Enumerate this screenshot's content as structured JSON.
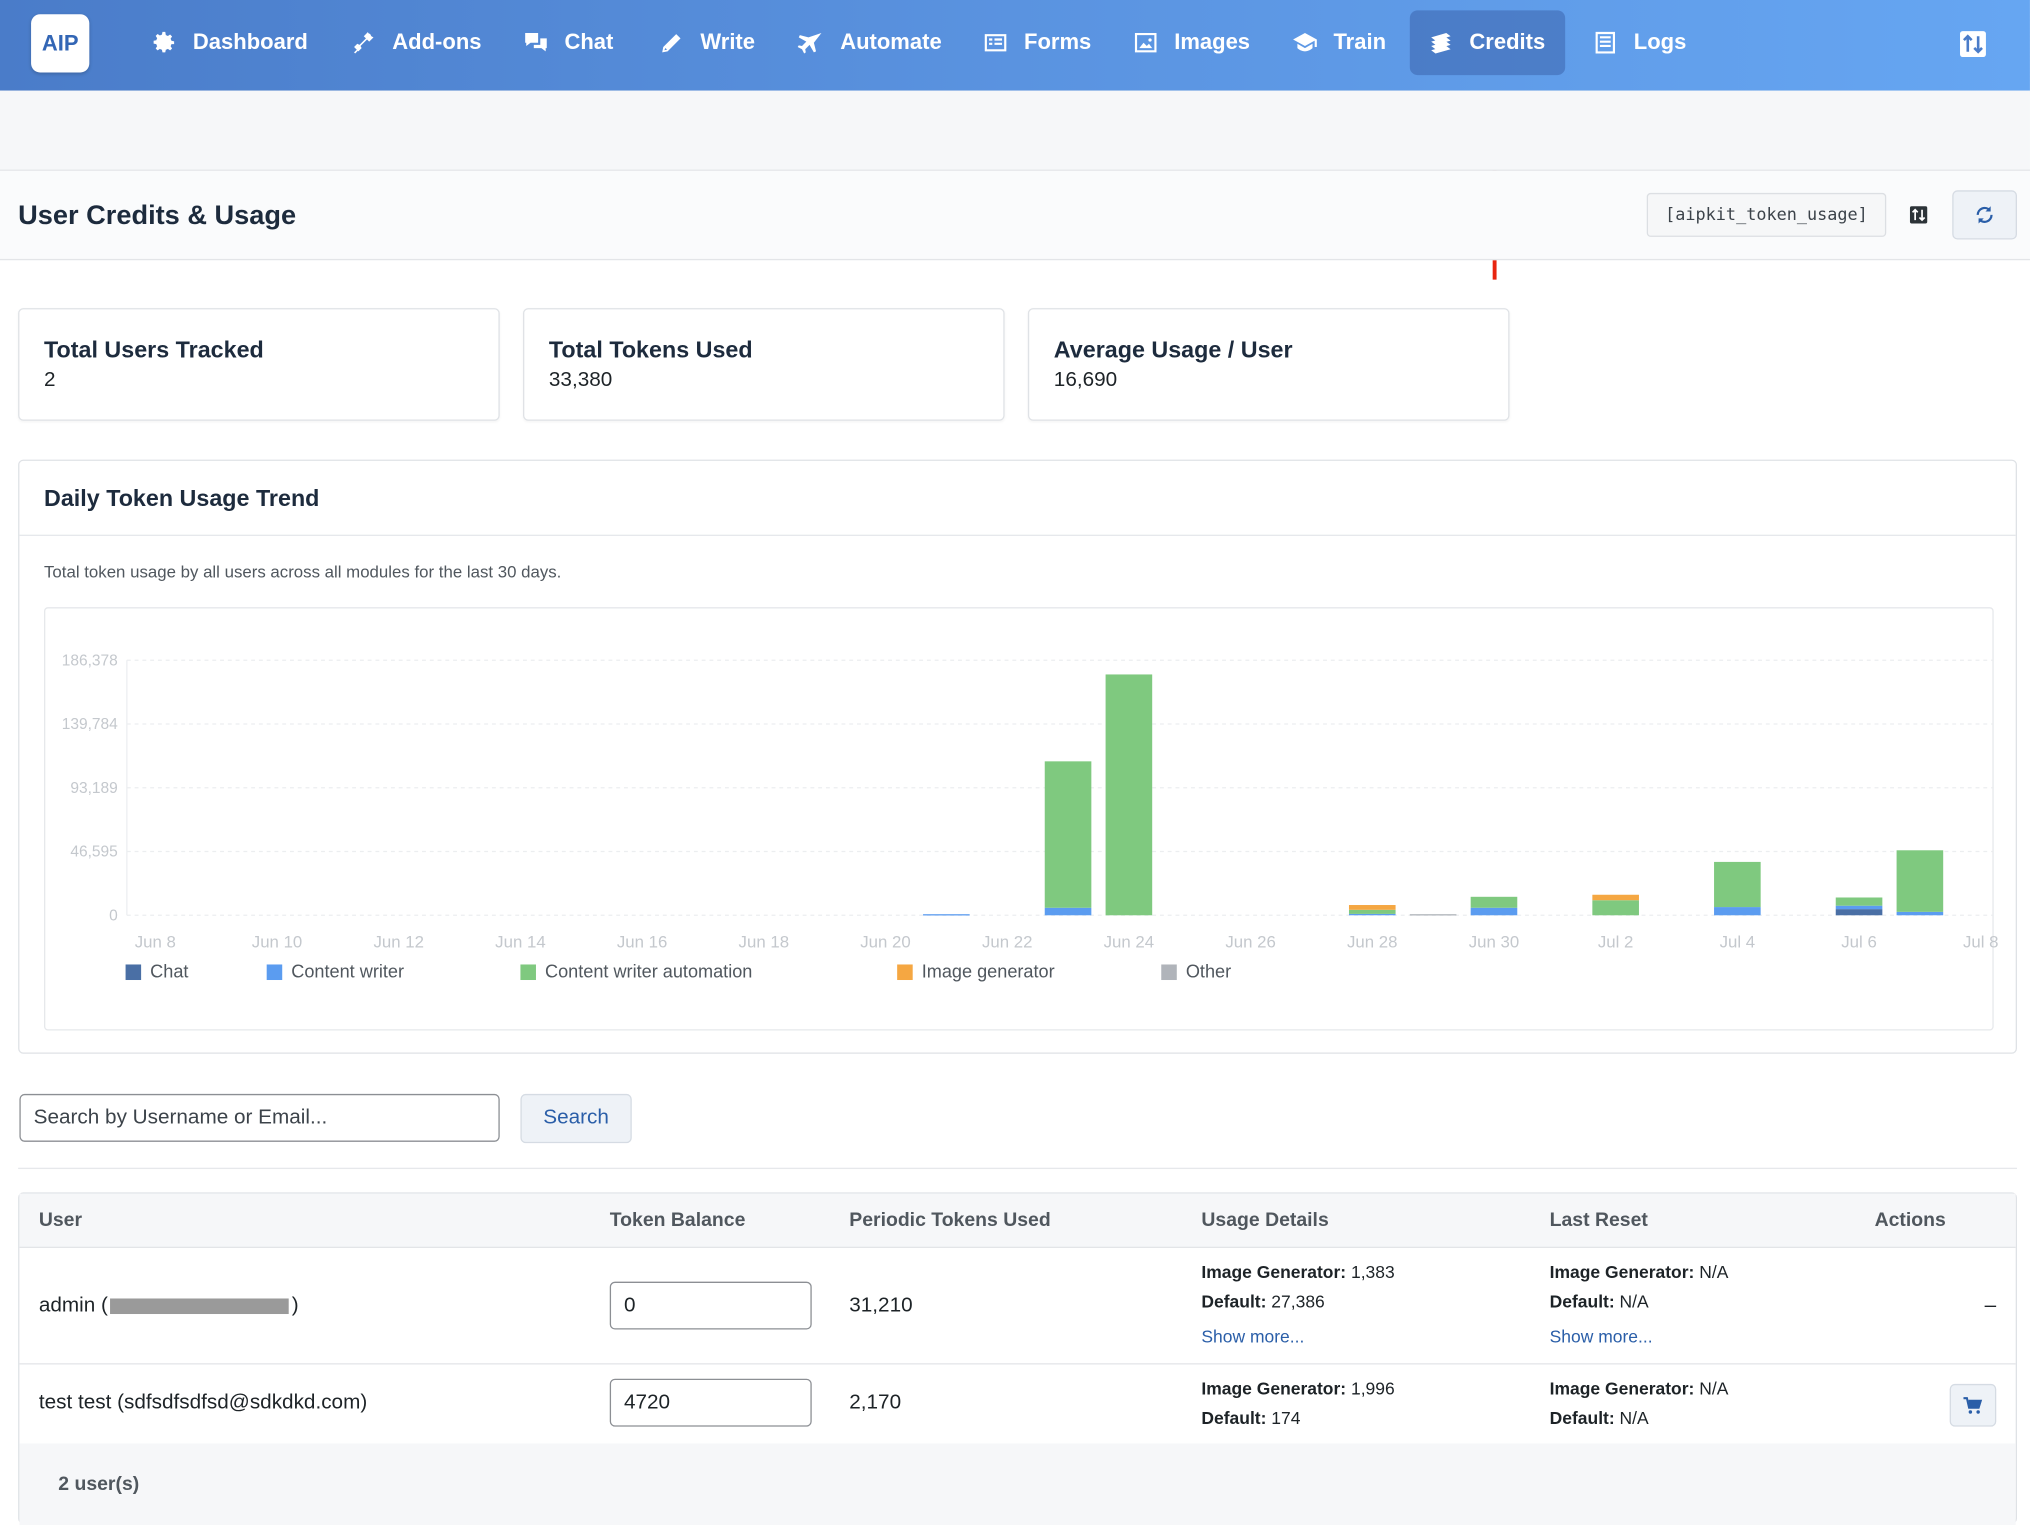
{
  "nav": {
    "logo": "AIP",
    "items": [
      {
        "label": "Dashboard",
        "icon": "gear-icon"
      },
      {
        "label": "Add-ons",
        "icon": "plug-icon"
      },
      {
        "label": "Chat",
        "icon": "chat-bubbles-icon"
      },
      {
        "label": "Write",
        "icon": "pencil-icon"
      },
      {
        "label": "Automate",
        "icon": "plane-icon"
      },
      {
        "label": "Forms",
        "icon": "form-icon"
      },
      {
        "label": "Images",
        "icon": "image-icon"
      },
      {
        "label": "Train",
        "icon": "graduation-cap-icon"
      },
      {
        "label": "Credits",
        "icon": "money-stack-icon",
        "active": true
      },
      {
        "label": "Logs",
        "icon": "list-icon"
      }
    ]
  },
  "header": {
    "title": "User Credits & Usage",
    "shortcode": "[aipkit_token_usage]"
  },
  "stats": [
    {
      "label": "Total Users Tracked",
      "value": "2"
    },
    {
      "label": "Total Tokens Used",
      "value": "33,380"
    },
    {
      "label": "Average Usage / User",
      "value": "16,690"
    }
  ],
  "trend": {
    "title": "Daily Token Usage Trend",
    "description": "Total token usage by all users across all modules for the last 30 days."
  },
  "chart_data": {
    "type": "bar",
    "stacked": true,
    "ylim": [
      0,
      186378
    ],
    "yticks": [
      "186,378",
      "139,784",
      "93,189",
      "46,595",
      "0"
    ],
    "ytick_values": [
      186378,
      139784,
      93189,
      46595,
      0
    ],
    "grid": true,
    "legend_position": "bottom-left",
    "categories": [
      "Jun 8",
      "Jun 9",
      "Jun 10",
      "Jun 11",
      "Jun 12",
      "Jun 13",
      "Jun 14",
      "Jun 15",
      "Jun 16",
      "Jun 17",
      "Jun 18",
      "Jun 19",
      "Jun 20",
      "Jun 21",
      "Jun 22",
      "Jun 23",
      "Jun 24",
      "Jun 25",
      "Jun 26",
      "Jun 27",
      "Jun 28",
      "Jun 29",
      "Jun 30",
      "Jul 1",
      "Jul 2",
      "Jul 3",
      "Jul 4",
      "Jul 5",
      "Jul 6",
      "Jul 7",
      "Jul 8"
    ],
    "xticks": [
      "Jun 8",
      "Jun 10",
      "Jun 12",
      "Jun 14",
      "Jun 16",
      "Jun 18",
      "Jun 20",
      "Jun 22",
      "Jun 24",
      "Jun 26",
      "Jun 28",
      "Jun 30",
      "Jul 2",
      "Jul 4",
      "Jul 6",
      "Jul 8"
    ],
    "series": [
      {
        "name": "Chat",
        "color": "#4a6fa5",
        "values": [
          0,
          0,
          0,
          0,
          0,
          0,
          0,
          0,
          0,
          0,
          0,
          0,
          0,
          0,
          0,
          0,
          0,
          0,
          0,
          0,
          0,
          0,
          0,
          0,
          0,
          0,
          0,
          0,
          4500,
          0,
          0
        ]
      },
      {
        "name": "Content writer",
        "color": "#5b9cf0",
        "values": [
          0,
          0,
          0,
          0,
          0,
          0,
          0,
          0,
          0,
          0,
          0,
          0,
          0,
          800,
          0,
          5500,
          0,
          0,
          0,
          0,
          1000,
          0,
          5500,
          0,
          0,
          0,
          6000,
          0,
          2500,
          2500,
          0
        ]
      },
      {
        "name": "Content writer automation",
        "color": "#7fc97f",
        "values": [
          0,
          0,
          0,
          0,
          0,
          0,
          0,
          0,
          0,
          0,
          0,
          0,
          0,
          0,
          0,
          107000,
          176000,
          0,
          0,
          0,
          3000,
          0,
          8000,
          0,
          11000,
          0,
          33000,
          0,
          6000,
          45000,
          0
        ]
      },
      {
        "name": "Image generator",
        "color": "#f5a742",
        "values": [
          0,
          0,
          0,
          0,
          0,
          0,
          0,
          0,
          0,
          0,
          0,
          0,
          0,
          0,
          0,
          0,
          0,
          0,
          0,
          0,
          3500,
          0,
          0,
          0,
          4000,
          0,
          0,
          0,
          0,
          0,
          0
        ]
      },
      {
        "name": "Other",
        "color": "#b0b4ba",
        "values": [
          0,
          0,
          0,
          0,
          0,
          0,
          0,
          0,
          0,
          0,
          0,
          0,
          0,
          0,
          0,
          0,
          0,
          0,
          0,
          0,
          0,
          800,
          0,
          0,
          0,
          0,
          0,
          0,
          0,
          0,
          0
        ]
      }
    ]
  },
  "search": {
    "placeholder": "Search by Username or Email...",
    "button": "Search"
  },
  "table": {
    "headers": [
      "User",
      "Token Balance",
      "Periodic Tokens Used",
      "Usage Details",
      "Last Reset",
      "Actions"
    ],
    "rows": [
      {
        "user_prefix": "admin (",
        "user_suffix": ")",
        "balance": "0",
        "periodic": "31,210",
        "usage": [
          {
            "k": "Image Generator:",
            "v": " 1,383"
          },
          {
            "k": "Default:",
            "v": " 27,386"
          }
        ],
        "usage_more": "Show more...",
        "reset": [
          {
            "k": "Image Generator:",
            "v": " N/A"
          },
          {
            "k": "Default:",
            "v": " N/A"
          }
        ],
        "reset_more": "Show more...",
        "action": "–"
      },
      {
        "user": "test test (sdfsdfsdfsd@sdkdkd.com)",
        "balance": "4720",
        "periodic": "2,170",
        "usage": [
          {
            "k": "Image Generator:",
            "v": " 1,996"
          },
          {
            "k": "Default:",
            "v": " 174"
          }
        ],
        "reset": [
          {
            "k": "Image Generator:",
            "v": " N/A"
          },
          {
            "k": "Default:",
            "v": " N/A"
          }
        ]
      }
    ],
    "footer": "2 user(s)"
  }
}
